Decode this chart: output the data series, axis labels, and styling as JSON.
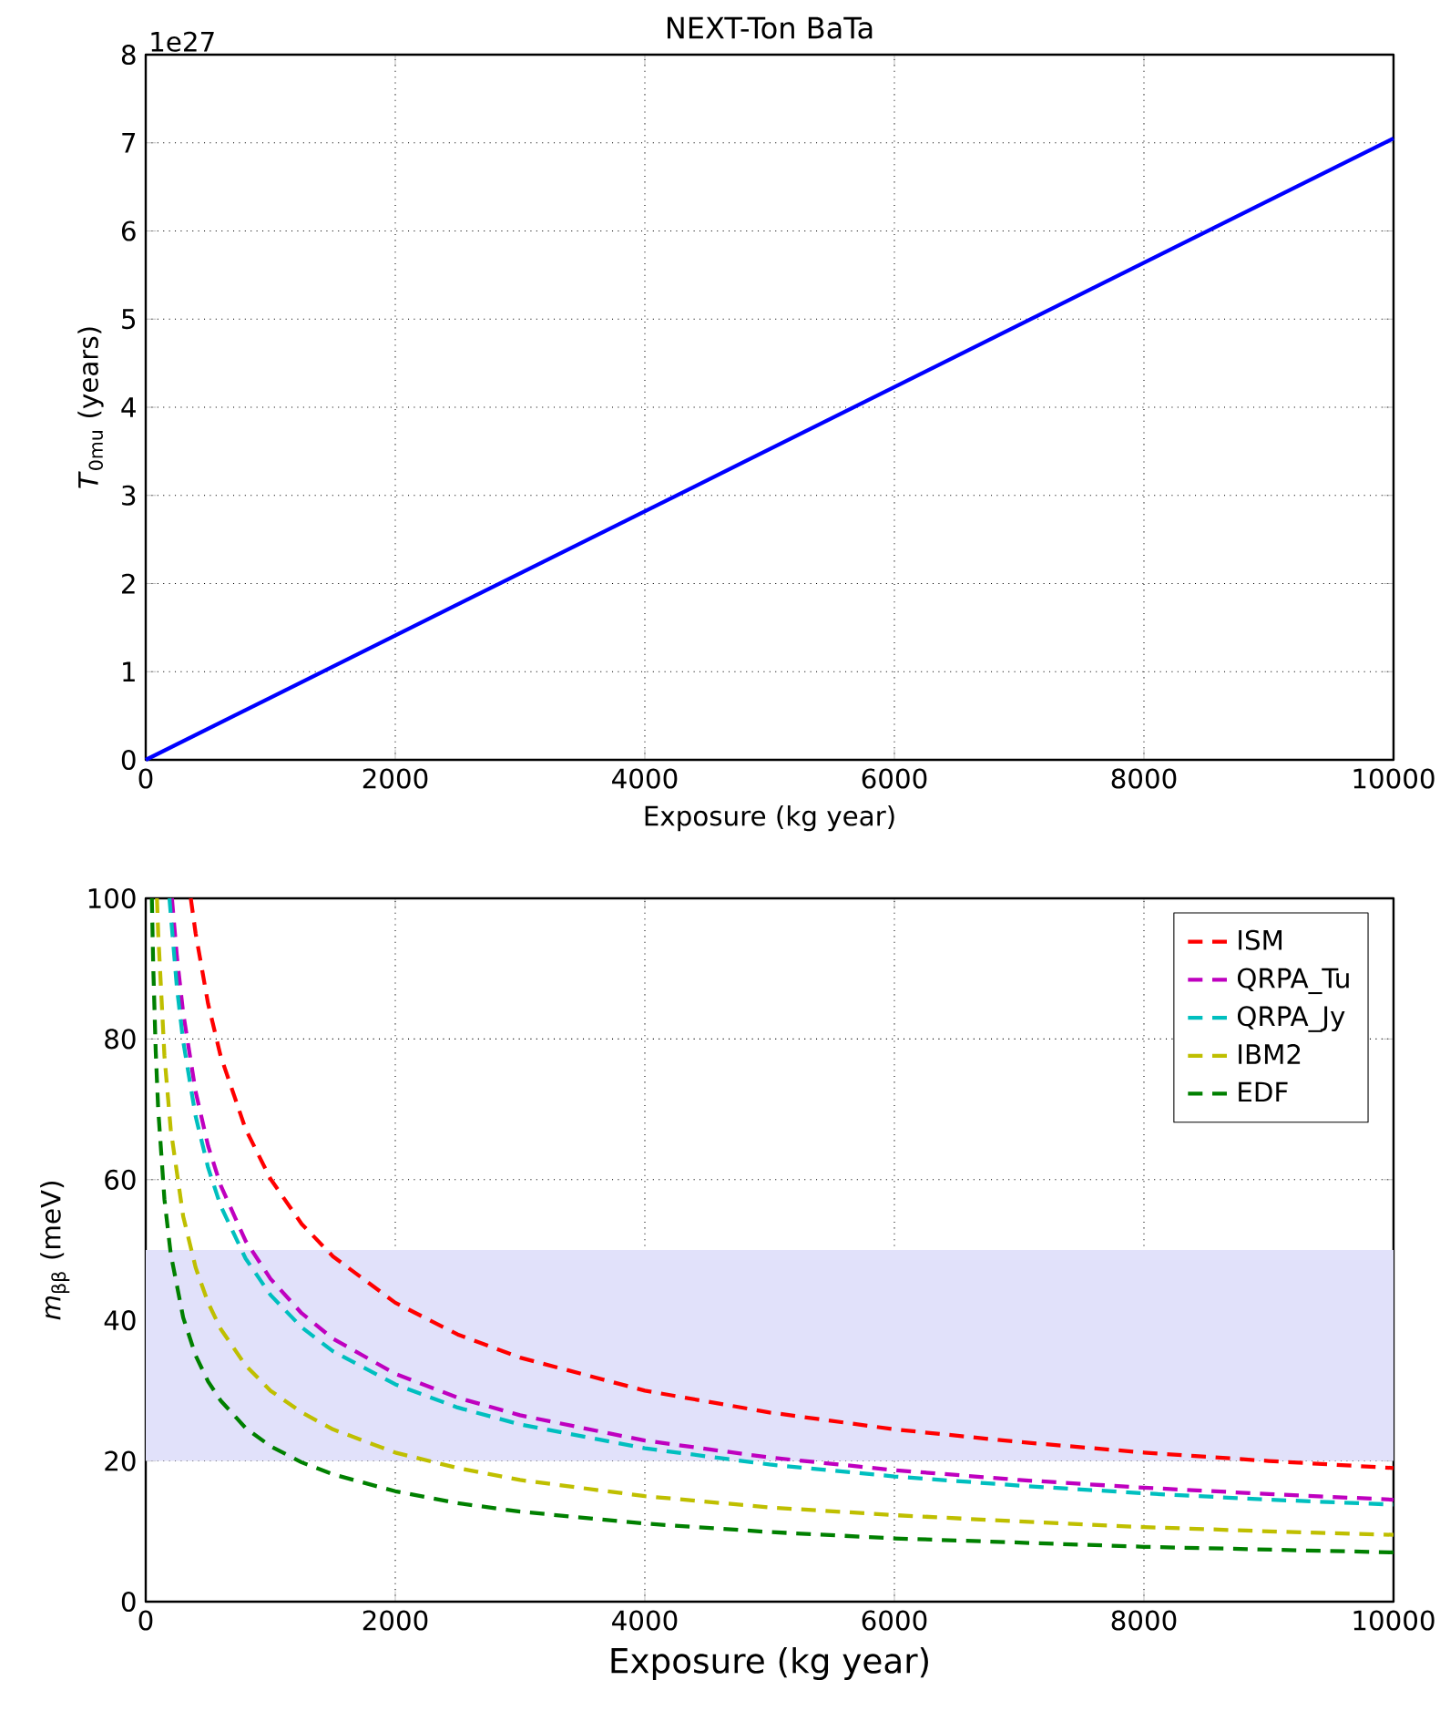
{
  "chart_data": [
    {
      "type": "line",
      "title": "NEXT-Ton BaTa",
      "xlabel": "Exposure (kg year)",
      "ylabel": "*T*$_{0mu}$ (years)",
      "annotations": [
        "1e27"
      ],
      "xlim": [
        0,
        10000
      ],
      "ylim": [
        0,
        8
      ],
      "xticks": [
        0,
        2000,
        4000,
        6000,
        8000,
        10000
      ],
      "yticks": [
        0,
        1,
        2,
        3,
        4,
        5,
        6,
        7,
        8
      ],
      "grid": true,
      "line_style": "solid",
      "marker": "none",
      "series": [
        {
          "color": "#0000ff",
          "x": [
            0,
            10000
          ],
          "values": [
            0,
            7.05
          ]
        }
      ]
    },
    {
      "type": "line",
      "xlabel": "Exposure (kg year)",
      "ylabel": "*m*$_{ββ}$ (meV)",
      "xlim": [
        0,
        10000
      ],
      "ylim": [
        0,
        100
      ],
      "xticks": [
        0,
        2000,
        4000,
        6000,
        8000,
        10000
      ],
      "yticks": [
        0,
        20,
        40,
        60,
        80,
        100
      ],
      "grid": true,
      "legend": "top right",
      "line_style": "dashed",
      "marker": "none",
      "bands": [
        {
          "axis": "y",
          "from": 20,
          "to": 50,
          "color": "#e1e1fa"
        }
      ],
      "series": [
        {
          "name": "ISM",
          "color": "#ff0000",
          "x": [
            361,
            400,
            500,
            600,
            800,
            1000,
            1250,
            1500,
            2000,
            2500,
            3000,
            4000,
            5000,
            6000,
            7000,
            8000,
            9000,
            10000
          ],
          "values": [
            100,
            95,
            85,
            77.6,
            67.2,
            60.1,
            53.7,
            49.1,
            42.5,
            38,
            34.7,
            30,
            26.9,
            24.5,
            22.7,
            21.2,
            20,
            19
          ]
        },
        {
          "name": "QRPA_Tu",
          "color": "#bf00bf",
          "x": [
            210,
            250,
            300,
            400,
            500,
            600,
            800,
            1000,
            1250,
            1500,
            2000,
            2500,
            3000,
            4000,
            5000,
            6000,
            7000,
            8000,
            9000,
            10000
          ],
          "values": [
            100,
            91.7,
            83.7,
            72.5,
            64.8,
            59.2,
            51.3,
            45.9,
            41,
            37.4,
            32.4,
            29,
            26.5,
            22.9,
            20.5,
            18.7,
            17.3,
            16.2,
            15.3,
            14.5
          ]
        },
        {
          "name": "QRPA_Jy",
          "color": "#00bfbf",
          "x": [
            190,
            250,
            300,
            400,
            500,
            600,
            800,
            1000,
            1250,
            1500,
            2000,
            2500,
            3000,
            4000,
            5000,
            6000,
            7000,
            8000,
            9000,
            10000
          ],
          "values": [
            100,
            87.3,
            79.7,
            69,
            61.7,
            56.3,
            48.8,
            43.6,
            39,
            35.6,
            30.9,
            27.6,
            25.2,
            21.8,
            19.5,
            17.8,
            16.5,
            15.4,
            14.5,
            13.8
          ]
        },
        {
          "name": "IBM2",
          "color": "#bfbf00",
          "x": [
            90,
            100,
            150,
            200,
            300,
            400,
            500,
            600,
            800,
            1000,
            1250,
            1500,
            2000,
            2500,
            3000,
            4000,
            5000,
            6000,
            7000,
            8000,
            9000,
            10000
          ],
          "values": [
            100,
            95,
            77.6,
            67.2,
            54.8,
            47.5,
            42.5,
            38.8,
            33.6,
            30,
            26.9,
            24.5,
            21.2,
            19,
            17.3,
            15,
            13.4,
            12.3,
            11.4,
            10.6,
            10,
            9.5
          ]
        },
        {
          "name": "EDF",
          "color": "#008000",
          "x": [
            49,
            60,
            80,
            100,
            150,
            200,
            300,
            400,
            500,
            600,
            800,
            1000,
            1250,
            1500,
            2000,
            2500,
            3000,
            4000,
            5000,
            6000,
            7000,
            8000,
            9000,
            10000
          ],
          "values": [
            100,
            90.4,
            78.3,
            70,
            57.2,
            49.5,
            40.4,
            35,
            31.3,
            28.6,
            24.7,
            22.1,
            19.8,
            18.1,
            15.7,
            14,
            12.8,
            11.1,
            9.9,
            9,
            8.4,
            7.8,
            7.4,
            7
          ]
        }
      ]
    }
  ]
}
